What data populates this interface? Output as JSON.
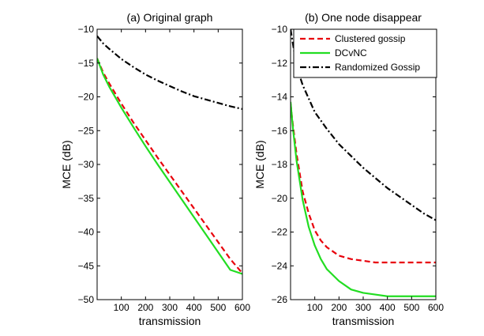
{
  "chart_data": [
    {
      "type": "line",
      "title": "(a) Original graph",
      "xlabel": "transmission",
      "ylabel": "MCE (dB)",
      "xlim": [
        0,
        600
      ],
      "ylim": [
        -50,
        -10
      ],
      "xticks": [
        100,
        200,
        300,
        400,
        500,
        600
      ],
      "yticks": [
        -10,
        -15,
        -20,
        -25,
        -30,
        -35,
        -40,
        -45,
        -50
      ],
      "grid": false,
      "legend": null,
      "series": [
        {
          "name": "Clustered gossip",
          "color": "#e8000b",
          "style": "dashed",
          "x": [
            0,
            25,
            50,
            100,
            150,
            200,
            250,
            300,
            350,
            400,
            450,
            500,
            550,
            600
          ],
          "y": [
            -14.3,
            -16.4,
            -18.0,
            -21.0,
            -23.8,
            -26.4,
            -29.0,
            -31.5,
            -34.0,
            -36.5,
            -39.0,
            -41.5,
            -44.0,
            -46.1
          ]
        },
        {
          "name": "DCvNC",
          "color": "#22dd22",
          "style": "solid",
          "x": [
            0,
            25,
            50,
            100,
            150,
            200,
            250,
            300,
            350,
            400,
            450,
            500,
            550,
            600
          ],
          "y": [
            -14.3,
            -16.7,
            -18.5,
            -21.6,
            -24.5,
            -27.3,
            -30.0,
            -32.6,
            -35.2,
            -37.8,
            -40.4,
            -43.0,
            -45.6,
            -46.2
          ]
        },
        {
          "name": "Randomized Gossip",
          "color": "#000000",
          "style": "dashdot",
          "x": [
            0,
            25,
            50,
            100,
            150,
            200,
            250,
            300,
            350,
            400,
            450,
            500,
            550,
            600
          ],
          "y": [
            -11.0,
            -12.1,
            -12.9,
            -14.4,
            -15.6,
            -16.7,
            -17.6,
            -18.4,
            -19.2,
            -19.9,
            -20.4,
            -20.9,
            -21.4,
            -21.8
          ]
        }
      ]
    },
    {
      "type": "line",
      "title": "(b) One node disappear",
      "xlabel": "transmission",
      "ylabel": "MCE (dB)",
      "xlim": [
        0,
        600
      ],
      "ylim": [
        -26,
        -10
      ],
      "xticks": [
        100,
        200,
        300,
        400,
        500,
        600
      ],
      "yticks": [
        -10,
        -12,
        -14,
        -16,
        -18,
        -20,
        -22,
        -24,
        -26
      ],
      "grid": false,
      "legend": "top-right",
      "series": [
        {
          "name": "Clustered gossip",
          "color": "#e8000b",
          "style": "dashed",
          "x": [
            0,
            10,
            25,
            50,
            75,
            100,
            125,
            150,
            200,
            250,
            300,
            350,
            400,
            500,
            600
          ],
          "y": [
            -14.4,
            -15.7,
            -17.4,
            -19.6,
            -20.9,
            -21.9,
            -22.5,
            -22.9,
            -23.4,
            -23.6,
            -23.7,
            -23.8,
            -23.8,
            -23.8,
            -23.8
          ]
        },
        {
          "name": "DCvNC",
          "color": "#22dd22",
          "style": "solid",
          "x": [
            0,
            10,
            25,
            50,
            75,
            100,
            125,
            150,
            200,
            250,
            300,
            350,
            400,
            500,
            600
          ],
          "y": [
            -14.3,
            -15.9,
            -17.8,
            -20.1,
            -21.7,
            -22.8,
            -23.6,
            -24.2,
            -24.9,
            -25.4,
            -25.6,
            -25.7,
            -25.8,
            -25.8,
            -25.8
          ]
        },
        {
          "name": "Randomized Gossip",
          "color": "#000000",
          "style": "dashdot",
          "x": [
            0,
            25,
            50,
            100,
            150,
            200,
            250,
            300,
            350,
            400,
            450,
            500,
            550,
            600
          ],
          "y": [
            -10.0,
            -12.2,
            -13.3,
            -14.9,
            -15.9,
            -16.8,
            -17.5,
            -18.2,
            -18.8,
            -19.4,
            -19.9,
            -20.4,
            -20.9,
            -21.3
          ]
        }
      ]
    }
  ]
}
